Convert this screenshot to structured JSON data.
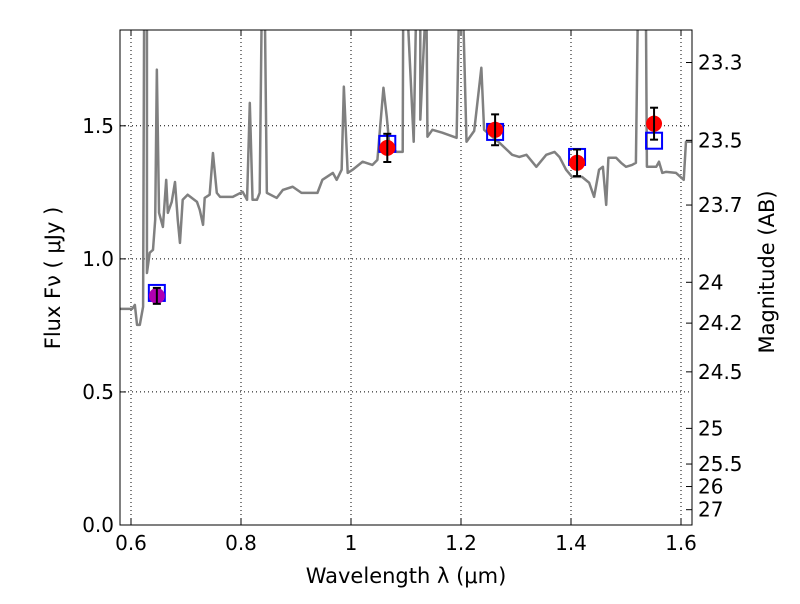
{
  "chart_data": {
    "type": "line",
    "title": "",
    "xlabel": "Wavelength  λ (μm)",
    "ylabel": "Flux  Fν  ( μJy )",
    "ylabel_right": "Magnitude (AB)",
    "xlim": [
      0.58,
      1.62
    ],
    "ylim": [
      0.0,
      1.86
    ],
    "grid": true,
    "xticks": [
      0.6,
      0.8,
      1.0,
      1.2,
      1.4,
      1.6
    ],
    "xtick_labels": [
      "0.6",
      "0.8",
      "1",
      "1.2",
      "1.4",
      "1.6"
    ],
    "yticks": [
      0.0,
      0.5,
      1.0,
      1.5
    ],
    "ytick_labels": [
      "0.0",
      "0.5",
      "1.0",
      "1.5"
    ],
    "right_ticks_mag": [
      23.3,
      23.5,
      23.7,
      24,
      24.2,
      24.5,
      25,
      25.5,
      26,
      27
    ],
    "right_tick_labels": [
      "23.3",
      "23.5",
      "23.7",
      "24",
      "24.2",
      "24.5",
      "25",
      "25.5",
      "26",
      "27"
    ],
    "mag_zeropoint": 23.9,
    "colors": {
      "spectrum": "#808080",
      "observed": "#ff0000",
      "observed_first": "#b000b0",
      "model": "#0000ff",
      "errorbar": "#000000"
    },
    "series": [
      {
        "name": "model spectrum",
        "type": "line",
        "points": [
          [
            0.58,
            0.812
          ],
          [
            0.602,
            0.812
          ],
          [
            0.607,
            0.827
          ],
          [
            0.611,
            0.752
          ],
          [
            0.616,
            0.752
          ],
          [
            0.622,
            0.82
          ],
          [
            0.624,
            2.0
          ],
          [
            0.629,
            2.0
          ],
          [
            0.629,
            0.947
          ],
          [
            0.634,
            1.023
          ],
          [
            0.64,
            1.034
          ],
          [
            0.644,
            1.147
          ],
          [
            0.647,
            1.711
          ],
          [
            0.651,
            1.173
          ],
          [
            0.658,
            1.12
          ],
          [
            0.664,
            1.297
          ],
          [
            0.667,
            1.173
          ],
          [
            0.674,
            1.214
          ],
          [
            0.68,
            1.289
          ],
          [
            0.685,
            1.147
          ],
          [
            0.689,
            1.06
          ],
          [
            0.694,
            1.222
          ],
          [
            0.703,
            1.241
          ],
          [
            0.72,
            1.214
          ],
          [
            0.725,
            1.184
          ],
          [
            0.731,
            1.128
          ],
          [
            0.734,
            1.229
          ],
          [
            0.743,
            1.241
          ],
          [
            0.749,
            1.398
          ],
          [
            0.756,
            1.248
          ],
          [
            0.762,
            1.233
          ],
          [
            0.785,
            1.233
          ],
          [
            0.803,
            1.252
          ],
          [
            0.811,
            1.222
          ],
          [
            0.816,
            1.586
          ],
          [
            0.821,
            1.222
          ],
          [
            0.829,
            1.222
          ],
          [
            0.834,
            1.248
          ],
          [
            0.838,
            2.0
          ],
          [
            0.843,
            2.0
          ],
          [
            0.847,
            1.248
          ],
          [
            0.865,
            1.229
          ],
          [
            0.876,
            1.259
          ],
          [
            0.894,
            1.271
          ],
          [
            0.91,
            1.248
          ],
          [
            0.939,
            1.248
          ],
          [
            0.948,
            1.297
          ],
          [
            0.967,
            1.323
          ],
          [
            0.974,
            1.297
          ],
          [
            0.983,
            1.335
          ],
          [
            0.987,
            1.647
          ],
          [
            0.994,
            1.323
          ],
          [
            1.003,
            1.335
          ],
          [
            1.021,
            1.365
          ],
          [
            1.039,
            1.353
          ],
          [
            1.048,
            1.372
          ],
          [
            1.059,
            1.643
          ],
          [
            1.065,
            1.534
          ],
          [
            1.07,
            1.421
          ],
          [
            1.083,
            1.402
          ],
          [
            1.094,
            1.402
          ],
          [
            1.095,
            2.0
          ],
          [
            1.101,
            2.0
          ],
          [
            1.114,
            1.44
          ],
          [
            1.119,
            2.0
          ],
          [
            1.126,
            2.0
          ],
          [
            1.126,
            1.523
          ],
          [
            1.137,
            2.0
          ],
          [
            1.139,
            1.459
          ],
          [
            1.148,
            1.485
          ],
          [
            1.166,
            1.474
          ],
          [
            1.192,
            1.455
          ],
          [
            1.197,
            2.0
          ],
          [
            1.203,
            2.0
          ],
          [
            1.21,
            1.44
          ],
          [
            1.224,
            1.481
          ],
          [
            1.237,
            1.718
          ],
          [
            1.242,
            1.485
          ],
          [
            1.27,
            1.436
          ],
          [
            1.293,
            1.391
          ],
          [
            1.306,
            1.383
          ],
          [
            1.319,
            1.391
          ],
          [
            1.337,
            1.346
          ],
          [
            1.355,
            1.391
          ],
          [
            1.37,
            1.402
          ],
          [
            1.379,
            1.383
          ],
          [
            1.391,
            1.335
          ],
          [
            1.402,
            1.308
          ],
          [
            1.42,
            1.308
          ],
          [
            1.433,
            1.286
          ],
          [
            1.442,
            1.233
          ],
          [
            1.451,
            1.335
          ],
          [
            1.458,
            1.346
          ],
          [
            1.464,
            1.203
          ],
          [
            1.468,
            1.38
          ],
          [
            1.482,
            1.38
          ],
          [
            1.491,
            1.361
          ],
          [
            1.5,
            1.346
          ],
          [
            1.511,
            1.353
          ],
          [
            1.518,
            1.361
          ],
          [
            1.522,
            2.0
          ],
          [
            1.536,
            2.0
          ],
          [
            1.538,
            1.346
          ],
          [
            1.555,
            1.346
          ],
          [
            1.56,
            1.365
          ],
          [
            1.566,
            1.323
          ],
          [
            1.573,
            1.327
          ],
          [
            1.591,
            1.323
          ],
          [
            1.605,
            1.297
          ],
          [
            1.609,
            1.44
          ],
          [
            1.62,
            1.44
          ]
        ]
      },
      {
        "name": "observed photometry",
        "type": "errorbar",
        "x": [
          0.647,
          1.066,
          1.262,
          1.411,
          1.551
        ],
        "y": [
          0.861,
          1.417,
          1.485,
          1.361,
          1.508
        ],
        "yerr": [
          0.03,
          0.053,
          0.058,
          0.05,
          0.06
        ]
      },
      {
        "name": "model photometry",
        "type": "scatter",
        "marker": "square",
        "x": [
          0.647,
          1.066,
          1.262,
          1.411,
          1.551
        ],
        "y": [
          0.872,
          1.432,
          1.477,
          1.383,
          1.444
        ]
      }
    ]
  }
}
